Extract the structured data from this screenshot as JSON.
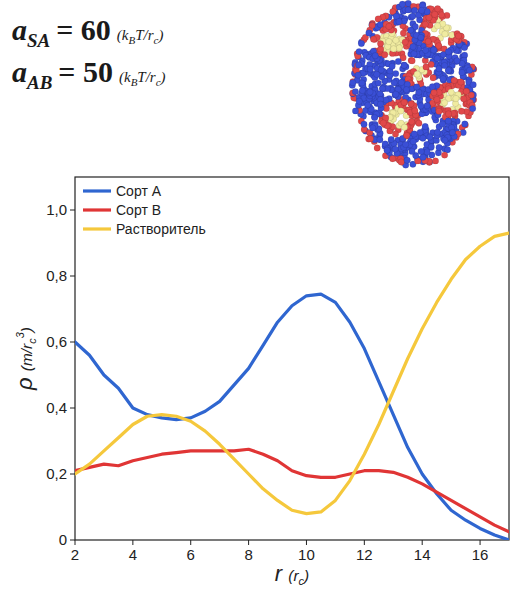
{
  "chart_data": {
    "type": "line",
    "annotations": [
      {
        "symbol": "a",
        "sub": "SA",
        "value": "= 60",
        "unit": [
          {
            "text": "(k"
          },
          {
            "sub": "B"
          },
          {
            "text": "T/r"
          },
          {
            "sub": "c"
          },
          {
            "text": ")"
          }
        ]
      },
      {
        "symbol": "a",
        "sub": "AB",
        "value": "= 50",
        "unit": [
          {
            "text": "(k"
          },
          {
            "sub": "B"
          },
          {
            "text": "T/r"
          },
          {
            "sub": "c"
          },
          {
            "text": ")"
          }
        ]
      }
    ],
    "x_label": [
      {
        "text": "r "
      },
      {
        "unit": "(r"
      },
      {
        "unit_sub": "c"
      },
      {
        "unit": ")"
      }
    ],
    "y_label": [
      {
        "text": "ρ "
      },
      {
        "unit": "(m/r"
      },
      {
        "unit_sub": "c"
      },
      {
        "unit_sup": "3"
      },
      {
        "unit": ")"
      }
    ],
    "x": [
      2,
      2.5,
      3,
      3.5,
      4,
      4.5,
      5,
      5.5,
      6,
      6.5,
      7,
      7.5,
      8,
      8.5,
      9,
      9.5,
      10,
      10.5,
      11,
      11.5,
      12,
      12.5,
      13,
      13.5,
      14,
      14.5,
      15,
      15.5,
      16,
      16.5,
      17
    ],
    "series": [
      {
        "name": "Сорт A",
        "color": "#2f66d0",
        "values": [
          0.6,
          0.56,
          0.5,
          0.46,
          0.4,
          0.38,
          0.37,
          0.365,
          0.37,
          0.39,
          0.42,
          0.47,
          0.52,
          0.59,
          0.66,
          0.71,
          0.74,
          0.745,
          0.72,
          0.66,
          0.58,
          0.48,
          0.38,
          0.28,
          0.2,
          0.14,
          0.09,
          0.06,
          0.035,
          0.015,
          0.0
        ]
      },
      {
        "name": "Сорт B",
        "color": "#e03535",
        "values": [
          0.21,
          0.22,
          0.23,
          0.225,
          0.24,
          0.25,
          0.26,
          0.265,
          0.27,
          0.27,
          0.27,
          0.27,
          0.275,
          0.26,
          0.24,
          0.21,
          0.195,
          0.19,
          0.19,
          0.2,
          0.21,
          0.21,
          0.205,
          0.19,
          0.17,
          0.145,
          0.12,
          0.095,
          0.07,
          0.045,
          0.025
        ]
      },
      {
        "name": "Растворитель",
        "color": "#f5c83c",
        "values": [
          0.2,
          0.23,
          0.27,
          0.31,
          0.35,
          0.375,
          0.38,
          0.375,
          0.36,
          0.33,
          0.29,
          0.245,
          0.2,
          0.155,
          0.12,
          0.09,
          0.08,
          0.085,
          0.12,
          0.18,
          0.26,
          0.35,
          0.45,
          0.55,
          0.64,
          0.72,
          0.79,
          0.85,
          0.89,
          0.92,
          0.93
        ]
      }
    ],
    "xlim": [
      2,
      17
    ],
    "ylim": [
      0,
      1.1
    ],
    "xticks": [
      2,
      4,
      6,
      8,
      10,
      12,
      14,
      16
    ],
    "yticks": [
      0,
      {
        "value": 0.2,
        "label": "0,2"
      },
      {
        "value": 0.4,
        "label": "0,4"
      },
      {
        "value": 0.6,
        "label": "0,6"
      },
      {
        "value": 0.8,
        "label": "0,8"
      },
      {
        "value": 1.0,
        "label": "1,0"
      }
    ],
    "legend": "upper left",
    "grid": false
  }
}
